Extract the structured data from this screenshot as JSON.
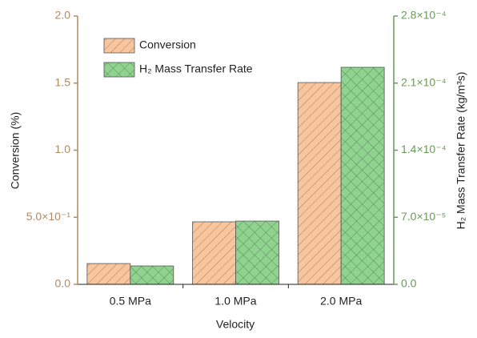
{
  "chart_data": {
    "type": "bar",
    "x_label": "Velocity",
    "y_label": "Conversion (%)",
    "y2_label": "H₂ Mass Transfer Rate (kg/m³s)",
    "categories": [
      "0.5 MPa",
      "1.0 MPa",
      "2.0 MPa"
    ],
    "series": [
      {
        "name": "Conversion",
        "color": "#f7c59e",
        "values": [
          0.155,
          0.466,
          1.504
        ]
      },
      {
        "name": "H₂ Mass Transfer Rate",
        "color": "#8fd38f",
        "axis": "y2",
        "values": [
          1.92e-05,
          6.6e-05,
          0.0002265
        ]
      }
    ],
    "ylim": [
      0,
      2.0
    ],
    "yticks": [
      {
        "value": 0,
        "label": "0.0"
      },
      {
        "value": 0.5,
        "label": "5.0×10⁻¹"
      },
      {
        "value": 1,
        "label": "1.0"
      },
      1.5,
      {
        "value": 2,
        "label": "2.0"
      }
    ],
    "y2lim": [
      0,
      0.00028
    ],
    "y2ticks": [
      {
        "value": 0,
        "label": "0.0"
      },
      {
        "value": 7e-05,
        "label": "7.0×10⁻⁵"
      },
      {
        "value": 0.00014,
        "label": "1.4×10⁻⁴"
      },
      {
        "value": 0.00021,
        "label": "2.1×10⁻⁴"
      },
      {
        "value": 0.00028,
        "label": "2.8×10⁻⁴"
      }
    ]
  }
}
